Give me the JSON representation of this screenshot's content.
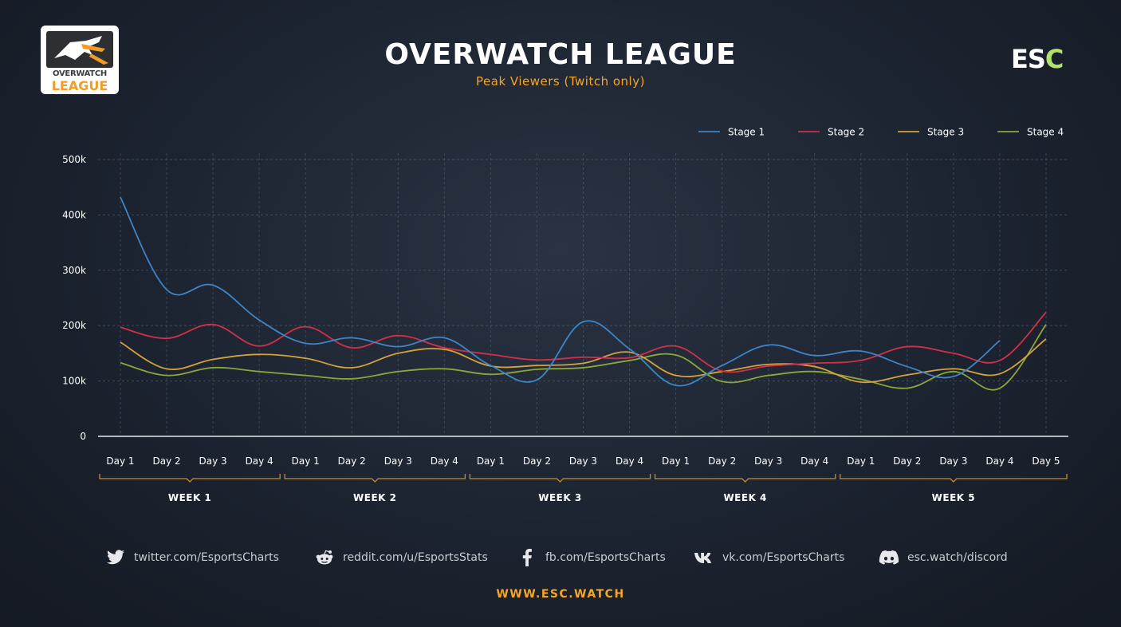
{
  "header": {
    "logo_line1": "OVERWATCH",
    "logo_line2": "LEAGUE",
    "title": "OVERWATCH LEAGUE",
    "subtitle": "Peak Viewers (Twitch only)",
    "brand": "ESC"
  },
  "chart_data": {
    "type": "line",
    "title": "OVERWATCH LEAGUE",
    "subtitle": "Peak Viewers (Twitch only)",
    "ylim": [
      0,
      500000
    ],
    "yticks": [
      0,
      100000,
      200000,
      300000,
      400000,
      500000
    ],
    "ytick_labels": [
      "0",
      "100k",
      "200k",
      "300k",
      "400k",
      "500k"
    ],
    "grid": true,
    "legend_position": "top-right",
    "categories": [
      "Day 1",
      "Day 2",
      "Day 3",
      "Day 4",
      "Day 1",
      "Day 2",
      "Day 3",
      "Day 4",
      "Day 1",
      "Day 2",
      "Day 3",
      "Day 4",
      "Day 1",
      "Day 2",
      "Day 3",
      "Day 4",
      "Day 1",
      "Day 2",
      "Day 3",
      "Day 4",
      "Day 5"
    ],
    "groups": [
      {
        "label": "WEEK 1",
        "start": 0,
        "end": 3
      },
      {
        "label": "WEEK 2",
        "start": 4,
        "end": 7
      },
      {
        "label": "WEEK 3",
        "start": 8,
        "end": 11
      },
      {
        "label": "WEEK 4",
        "start": 12,
        "end": 15
      },
      {
        "label": "WEEK 5",
        "start": 16,
        "end": 20
      }
    ],
    "series": [
      {
        "name": "Stage 1",
        "color": "#3d85c6",
        "values": [
          432000,
          265000,
          273000,
          210000,
          168000,
          178000,
          162000,
          178000,
          128000,
          102000,
          207000,
          158000,
          92000,
          128000,
          165000,
          146000,
          154000,
          126000,
          108000,
          173000,
          null
        ]
      },
      {
        "name": "Stage 2",
        "color": "#d0304a",
        "values": [
          197000,
          177000,
          202000,
          163000,
          198000,
          160000,
          182000,
          160000,
          148000,
          138000,
          143000,
          142000,
          163000,
          118000,
          127000,
          132000,
          137000,
          162000,
          150000,
          137000,
          224000
        ]
      },
      {
        "name": "Stage 3",
        "color": "#d4a23a",
        "values": [
          170000,
          122000,
          139000,
          148000,
          141000,
          124000,
          150000,
          157000,
          127000,
          128000,
          132000,
          152000,
          110000,
          117000,
          130000,
          126000,
          98000,
          111000,
          122000,
          113000,
          176000
        ]
      },
      {
        "name": "Stage 4",
        "color": "#8aa83a",
        "values": [
          133000,
          110000,
          124000,
          117000,
          110000,
          104000,
          117000,
          122000,
          112000,
          121000,
          124000,
          137000,
          147000,
          99000,
          110000,
          117000,
          103000,
          87000,
          117000,
          87000,
          202000
        ]
      }
    ]
  },
  "footer": {
    "socials": [
      {
        "icon": "twitter-icon",
        "text": "twitter.com/EsportsCharts"
      },
      {
        "icon": "reddit-icon",
        "text": "reddit.com/u/EsportsStats"
      },
      {
        "icon": "facebook-icon",
        "text": "fb.com/EsportsCharts"
      },
      {
        "icon": "vk-icon",
        "text": "vk.com/EsportsCharts"
      },
      {
        "icon": "discord-icon",
        "text": "esc.watch/discord"
      }
    ],
    "website": "WWW.ESC.WATCH"
  }
}
